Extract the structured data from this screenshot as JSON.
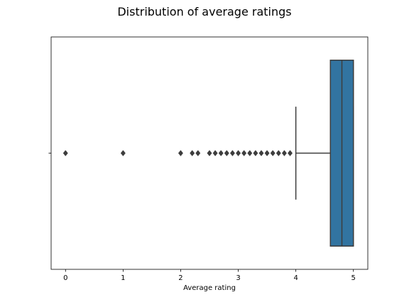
{
  "chart_data": {
    "type": "box",
    "orientation": "horizontal",
    "title": "Distribution of average ratings",
    "xlabel": "Average rating",
    "ylabel": "",
    "xlim": [
      -0.25,
      5.25
    ],
    "xticks": [
      "0",
      "1",
      "2",
      "3",
      "4",
      "5"
    ],
    "grid": false,
    "box": {
      "min_whisker": 4.0,
      "q1": 4.6,
      "median": 4.8,
      "q3": 5.0,
      "max_whisker": 5.0,
      "color": "#3274a1",
      "line_color": "#3d3d3d"
    },
    "outliers": [
      0.0,
      1.0,
      2.0,
      2.2,
      2.3,
      2.5,
      2.6,
      2.7,
      2.8,
      2.9,
      3.0,
      3.1,
      3.2,
      3.3,
      3.4,
      3.5,
      3.6,
      3.7,
      3.8,
      3.9
    ]
  }
}
